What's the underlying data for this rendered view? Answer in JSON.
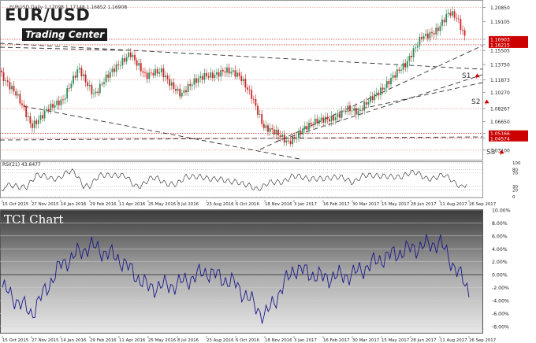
{
  "top_chart": {
    "symbol_line": "EURUSD,Daily  1.17098 1.17148 1.16852 1.16908",
    "brand": "EUR/USD",
    "brand_sub": "Trading Center",
    "price_labels": [
      "1.20850",
      "1.19105",
      "1.16903",
      "1.16215",
      "1.15505",
      "1.13750",
      "1.11873",
      "1.10270",
      "1.08267",
      "1.06650",
      "1.05166",
      "1.04574",
      "1.03100"
    ],
    "highlighted_price_labels": [
      "1.16903",
      "1.16215",
      "1.05166",
      "1.04574"
    ],
    "support_labels": [
      "S1",
      "S2",
      "S3"
    ],
    "colors": {
      "candle_up": "#2e8b57",
      "candle_down": "#cc2222",
      "resistance_line": "#cc0000",
      "trend_line": "#333333",
      "rsi_line": "#222222",
      "label_bg": "#cc0000",
      "support_arrow": "#cc0000"
    }
  },
  "rsi_panel": {
    "label": "RSI(21) 43.6477",
    "levels": [
      "100",
      "80",
      "70",
      "30",
      "20",
      "0"
    ]
  },
  "x_axis_dates": [
    "15 Oct 2015",
    "27 Nov 2015",
    "14 Jan 2016",
    "29 Feb 2016",
    "11 Apr 2016",
    "25 May 2016",
    "8 Jul 2016",
    "23 Aug 2016",
    "6 Oct 2016",
    "18 Nov 2016",
    "3 Jan 2017",
    "16 Feb 2017",
    "30 Mar 2017",
    "15 May 2017",
    "28 Jun 2017",
    "11 Aug 2017",
    "26 Sep 2017"
  ],
  "chart_data": {
    "type": "line",
    "title": "TCI Chart",
    "x": [
      "15 Oct 2015",
      "27 Nov 2015",
      "14 Jan 2016",
      "29 Feb 2016",
      "11 Apr 2016",
      "25 May 2016",
      "8 Jul 2016",
      "23 Aug 2016",
      "6 Oct 2016",
      "18 Nov 2016",
      "3 Jan 2017",
      "16 Feb 2017",
      "30 Mar 2017",
      "15 May 2017",
      "28 Jun 2017",
      "11 Aug 2017",
      "26 Sep 2017"
    ],
    "series": [
      {
        "values": [
          -2.0,
          -6.0,
          1.5,
          4.5,
          2.5,
          -2.0,
          -1.5,
          0.5,
          -1.5,
          -6.5,
          1.0,
          -0.5,
          0.0,
          2.5,
          4.0,
          5.0,
          -2.5
        ],
        "color": "#1a1a8c"
      }
    ],
    "y_ticks": [
      "10.00%",
      "8.00%",
      "6.00%",
      "4.00%",
      "2.00%",
      "0.00%",
      "-2.00%",
      "-4.00%",
      "-6.00%",
      "-8.00%"
    ],
    "ylim": [
      -9,
      10
    ],
    "grid": true
  }
}
